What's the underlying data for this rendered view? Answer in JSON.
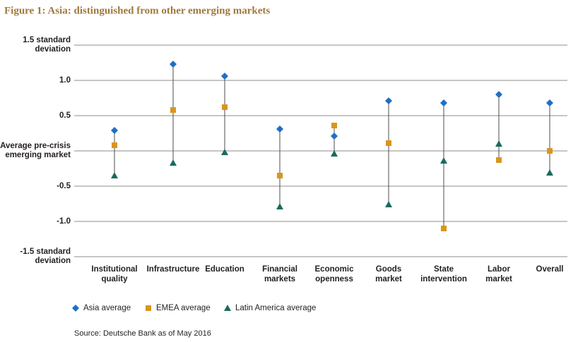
{
  "chart_data": {
    "type": "dot-range",
    "title": "Figure 1: Asia: distinguished from other emerging markets",
    "source": "Source: Deutsche Bank as of May 2016",
    "categories": [
      "Institutional quality",
      "Infrastructure",
      "Education",
      "Financial markets",
      "Economic openness",
      "Goods market",
      "State intervention",
      "Labor market",
      "Overall"
    ],
    "series": [
      {
        "name": "Asia average",
        "color": "#1f6fc5",
        "marker": "diamond",
        "values": [
          0.29,
          1.23,
          1.06,
          0.31,
          0.21,
          0.71,
          0.68,
          0.8,
          0.68
        ]
      },
      {
        "name": "EMEA average",
        "color": "#d9961a",
        "marker": "square",
        "values": [
          0.08,
          0.58,
          0.62,
          -0.35,
          0.36,
          0.11,
          -1.1,
          -0.13,
          0.0
        ]
      },
      {
        "name": "Latin America average",
        "color": "#1a6b5e",
        "marker": "triangle",
        "values": [
          -0.35,
          -0.17,
          -0.02,
          -0.79,
          -0.04,
          -0.76,
          -0.14,
          0.1,
          -0.31
        ]
      }
    ],
    "ylim": [
      -1.5,
      1.5
    ],
    "yticks": [
      {
        "value": 1.5,
        "label": "1.5 standard deviation"
      },
      {
        "value": 1.0,
        "label": "1.0"
      },
      0.5,
      {
        "value": 0,
        "label": "Average pre-crisis emerging market"
      },
      -0.5,
      {
        "value": -1.0,
        "label": "-1.0"
      },
      {
        "value": -1.5,
        "label": "-1.5 standard deviation"
      }
    ],
    "grid": true
  }
}
